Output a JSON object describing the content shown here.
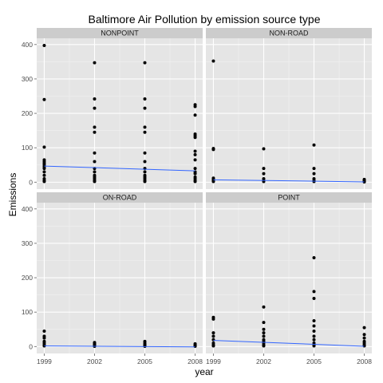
{
  "chart_data": {
    "type": "scatter",
    "title": "Baltimore Air Pollution by emission source type",
    "xlabel": "year",
    "ylabel": "Emissions",
    "x_ticks": [
      1999,
      2002,
      2005,
      2008
    ],
    "y_ticks": [
      0,
      100,
      200,
      300,
      400
    ],
    "xlim": [
      1998.55,
      2008.45
    ],
    "ylim": [
      -20,
      418
    ],
    "grid": true,
    "facets": [
      {
        "name": "NONPOINT",
        "points": [
          [
            1999,
            397
          ],
          [
            1999,
            240
          ],
          [
            1999,
            102
          ],
          [
            1999,
            65
          ],
          [
            1999,
            60
          ],
          [
            1999,
            55
          ],
          [
            1999,
            50
          ],
          [
            1999,
            45
          ],
          [
            1999,
            40
          ],
          [
            1999,
            30
          ],
          [
            1999,
            20
          ],
          [
            1999,
            10
          ],
          [
            1999,
            5
          ],
          [
            1999,
            2
          ],
          [
            2002,
            347
          ],
          [
            2002,
            242
          ],
          [
            2002,
            215
          ],
          [
            2002,
            160
          ],
          [
            2002,
            145
          ],
          [
            2002,
            85
          ],
          [
            2002,
            60
          ],
          [
            2002,
            40
          ],
          [
            2002,
            30
          ],
          [
            2002,
            20
          ],
          [
            2002,
            15
          ],
          [
            2002,
            10
          ],
          [
            2002,
            5
          ],
          [
            2002,
            2
          ],
          [
            2005,
            347
          ],
          [
            2005,
            242
          ],
          [
            2005,
            215
          ],
          [
            2005,
            160
          ],
          [
            2005,
            145
          ],
          [
            2005,
            85
          ],
          [
            2005,
            60
          ],
          [
            2005,
            40
          ],
          [
            2005,
            30
          ],
          [
            2005,
            20
          ],
          [
            2005,
            15
          ],
          [
            2005,
            10
          ],
          [
            2005,
            5
          ],
          [
            2005,
            2
          ],
          [
            2008,
            225
          ],
          [
            2008,
            220
          ],
          [
            2008,
            195
          ],
          [
            2008,
            140
          ],
          [
            2008,
            135
          ],
          [
            2008,
            130
          ],
          [
            2008,
            90
          ],
          [
            2008,
            80
          ],
          [
            2008,
            65
          ],
          [
            2008,
            40
          ],
          [
            2008,
            30
          ],
          [
            2008,
            25
          ],
          [
            2008,
            15
          ],
          [
            2008,
            10
          ],
          [
            2008,
            5
          ],
          [
            2008,
            2
          ]
        ],
        "trend": [
          [
            1999,
            47
          ],
          [
            2008,
            33
          ]
        ]
      },
      {
        "name": "NON-ROAD",
        "points": [
          [
            1999,
            352
          ],
          [
            1999,
            98
          ],
          [
            1999,
            95
          ],
          [
            1999,
            12
          ],
          [
            1999,
            8
          ],
          [
            1999,
            5
          ],
          [
            1999,
            2
          ],
          [
            2002,
            97
          ],
          [
            2002,
            40
          ],
          [
            2002,
            25
          ],
          [
            2002,
            10
          ],
          [
            2002,
            5
          ],
          [
            2002,
            2
          ],
          [
            2005,
            108
          ],
          [
            2005,
            40
          ],
          [
            2005,
            25
          ],
          [
            2005,
            10
          ],
          [
            2005,
            5
          ],
          [
            2005,
            2
          ],
          [
            2008,
            8
          ],
          [
            2008,
            5
          ],
          [
            2008,
            3
          ],
          [
            2008,
            1
          ]
        ],
        "trend": [
          [
            1999,
            7
          ],
          [
            2008,
            1
          ]
        ]
      },
      {
        "name": "ON-ROAD",
        "points": [
          [
            1999,
            45
          ],
          [
            1999,
            30
          ],
          [
            1999,
            25
          ],
          [
            1999,
            15
          ],
          [
            1999,
            10
          ],
          [
            1999,
            5
          ],
          [
            1999,
            2
          ],
          [
            2002,
            12
          ],
          [
            2002,
            8
          ],
          [
            2002,
            5
          ],
          [
            2002,
            3
          ],
          [
            2002,
            1
          ],
          [
            2005,
            15
          ],
          [
            2005,
            10
          ],
          [
            2005,
            6
          ],
          [
            2005,
            3
          ],
          [
            2005,
            1
          ],
          [
            2008,
            8
          ],
          [
            2008,
            5
          ],
          [
            2008,
            3
          ],
          [
            2008,
            1
          ]
        ],
        "trend": [
          [
            1999,
            2
          ],
          [
            2008,
            -1
          ]
        ]
      },
      {
        "name": "POINT",
        "points": [
          [
            1999,
            85
          ],
          [
            1999,
            80
          ],
          [
            1999,
            40
          ],
          [
            1999,
            30
          ],
          [
            1999,
            20
          ],
          [
            1999,
            10
          ],
          [
            1999,
            5
          ],
          [
            1999,
            2
          ],
          [
            2002,
            115
          ],
          [
            2002,
            70
          ],
          [
            2002,
            50
          ],
          [
            2002,
            40
          ],
          [
            2002,
            30
          ],
          [
            2002,
            20
          ],
          [
            2002,
            15
          ],
          [
            2002,
            10
          ],
          [
            2002,
            5
          ],
          [
            2002,
            2
          ],
          [
            2005,
            258
          ],
          [
            2005,
            160
          ],
          [
            2005,
            140
          ],
          [
            2005,
            75
          ],
          [
            2005,
            60
          ],
          [
            2005,
            45
          ],
          [
            2005,
            30
          ],
          [
            2005,
            20
          ],
          [
            2005,
            10
          ],
          [
            2005,
            5
          ],
          [
            2005,
            2
          ],
          [
            2008,
            55
          ],
          [
            2008,
            35
          ],
          [
            2008,
            25
          ],
          [
            2008,
            15
          ],
          [
            2008,
            10
          ],
          [
            2008,
            5
          ],
          [
            2008,
            2
          ]
        ],
        "trend": [
          [
            1999,
            18
          ],
          [
            2008,
            1
          ]
        ]
      }
    ]
  }
}
